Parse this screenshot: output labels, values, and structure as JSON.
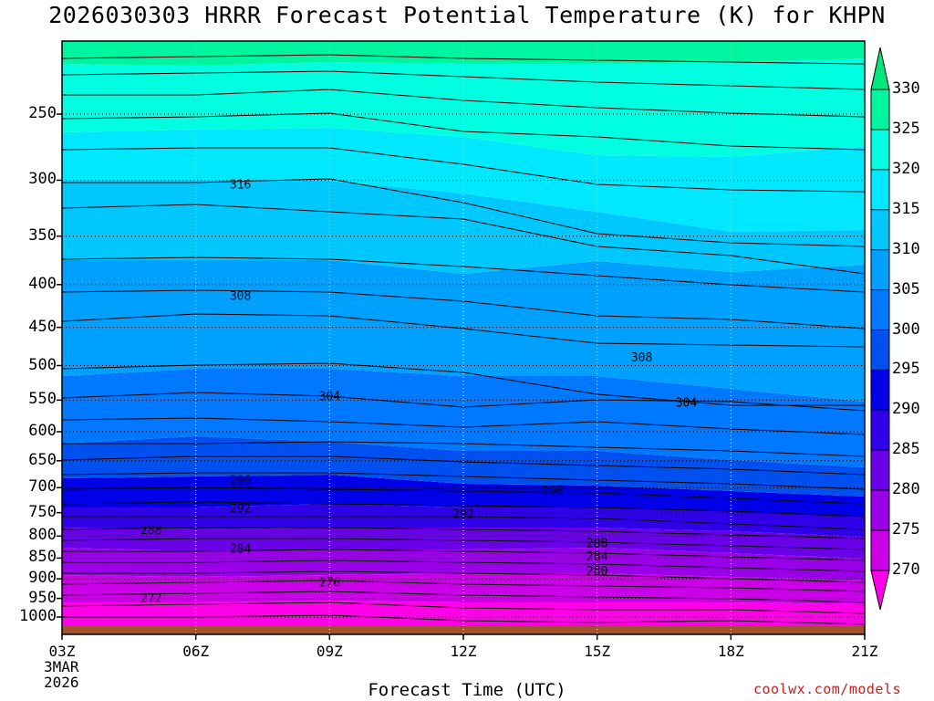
{
  "title": "2026030303 HRRR Forecast Potential Temperature (K) for KHPN",
  "x_axis": {
    "title": "Forecast Time (UTC)",
    "ticks": [
      "03Z",
      "06Z",
      "09Z",
      "12Z",
      "15Z",
      "18Z",
      "21Z"
    ],
    "start_date_lines": [
      "3MAR",
      "2026"
    ]
  },
  "y_axis": {
    "ticks": [
      "250",
      "300",
      "350",
      "400",
      "450",
      "500",
      "550",
      "600",
      "650",
      "700",
      "750",
      "800",
      "850",
      "900",
      "950",
      "1000"
    ]
  },
  "colorbar": {
    "labels": [
      "330",
      "325",
      "320",
      "315",
      "310",
      "305",
      "300",
      "295",
      "290",
      "285",
      "280",
      "275",
      "270"
    ],
    "colors": [
      "#00e67a",
      "#00f5a0",
      "#00ffe0",
      "#00e8ff",
      "#00c8ff",
      "#00a0ff",
      "#0078ff",
      "#0050f0",
      "#0000e8",
      "#3000e8",
      "#6a00e8",
      "#9a00e8",
      "#cc00e8",
      "#ff00e8"
    ]
  },
  "credit": "coolwx.com/models",
  "chart_data": {
    "type": "heatmap",
    "title": "2026030303 HRRR Forecast Potential Temperature (K) for KHPN",
    "xlabel": "Forecast Time (UTC)",
    "ylabel": "",
    "x": [
      "03Z",
      "06Z",
      "09Z",
      "12Z",
      "15Z",
      "18Z",
      "21Z"
    ],
    "y_pressure_hpa": [
      1000,
      950,
      900,
      850,
      800,
      750,
      700,
      650,
      600,
      550,
      500,
      450,
      400,
      350,
      300,
      250
    ],
    "log_pressure_axis": true,
    "grid": true,
    "color_scale": {
      "min": 270,
      "max": 330,
      "step": 5,
      "units": "K",
      "levels": [
        270,
        275,
        280,
        285,
        290,
        295,
        300,
        305,
        310,
        315,
        320,
        325,
        330
      ]
    },
    "contour_interval": 4,
    "contour_labels": [
      {
        "value": 316,
        "time": "07Z",
        "p": 303
      },
      {
        "value": 308,
        "time": "07Z",
        "p": 412
      },
      {
        "value": 308,
        "time": "16Z",
        "p": 488
      },
      {
        "value": 304,
        "time": "09Z",
        "p": 543
      },
      {
        "value": 304,
        "time": "17Z",
        "p": 553
      },
      {
        "value": 296,
        "time": "07Z",
        "p": 685
      },
      {
        "value": 296,
        "time": "14Z",
        "p": 705
      },
      {
        "value": 292,
        "time": "07Z",
        "p": 740
      },
      {
        "value": 292,
        "time": "12Z",
        "p": 752
      },
      {
        "value": 288,
        "time": "05Z",
        "p": 785
      },
      {
        "value": 288,
        "time": "15Z",
        "p": 815
      },
      {
        "value": 284,
        "time": "07Z",
        "p": 827
      },
      {
        "value": 284,
        "time": "15Z",
        "p": 845
      },
      {
        "value": 280,
        "time": "15Z",
        "p": 880
      },
      {
        "value": 276,
        "time": "09Z",
        "p": 908
      },
      {
        "value": 272,
        "time": "05Z",
        "p": 948
      }
    ]
  }
}
